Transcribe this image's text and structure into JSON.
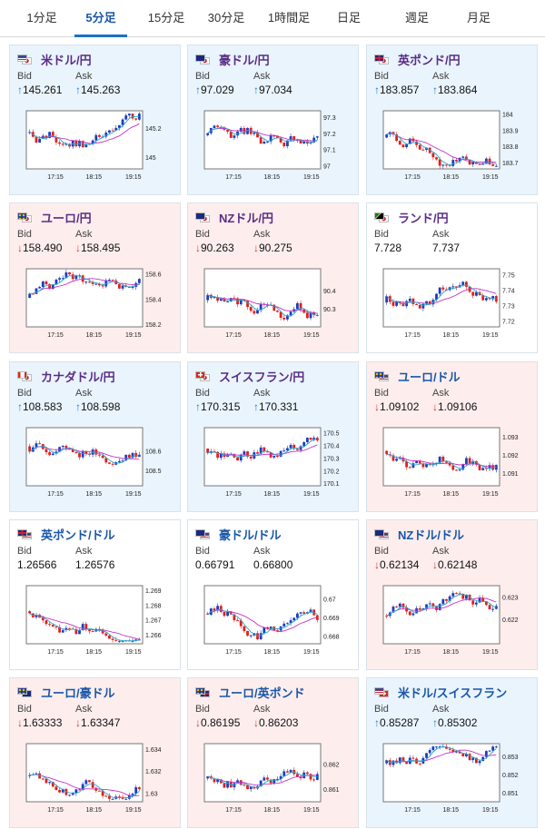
{
  "tabs": [
    {
      "label": "1分足",
      "active": false
    },
    {
      "label": "5分足",
      "active": true
    },
    {
      "label": "15分足",
      "active": false
    },
    {
      "label": "30分足",
      "active": false
    },
    {
      "label": "1時間足",
      "active": false
    },
    {
      "label": "日足",
      "active": false
    },
    {
      "label": "週足",
      "active": false
    },
    {
      "label": "月足",
      "active": false
    }
  ],
  "labels": {
    "bid": "Bid",
    "ask": "Ask"
  },
  "colors": {
    "up": "#1f7fc8",
    "down": "#d23a2e",
    "candle_up": "#1a3fbd",
    "candle_down": "#e0201a",
    "ma1": "#c433c4",
    "ma2": "#2aa7c9"
  },
  "x_ticks": [
    "17:15",
    "18:15",
    "19:15"
  ],
  "cards": [
    {
      "pair": "米ドル/円",
      "flags": [
        "us",
        "jp"
      ],
      "dir": "up",
      "bid": "145.261",
      "ask": "145.263",
      "yticks": [
        "145.2",
        "145"
      ],
      "ylim": [
        144.92,
        145.32
      ]
    },
    {
      "pair": "豪ドル/円",
      "flags": [
        "au",
        "jp"
      ],
      "dir": "up",
      "bid": "97.029",
      "ask": "97.034",
      "yticks": [
        "97.3",
        "97.2",
        "97.1",
        "97"
      ],
      "ylim": [
        96.98,
        97.34
      ]
    },
    {
      "pair": "英ポンド/円",
      "flags": [
        "uk",
        "jp"
      ],
      "dir": "up",
      "bid": "183.857",
      "ask": "183.864",
      "yticks": [
        "184",
        "183.9",
        "183.8",
        "183.7"
      ],
      "ylim": [
        183.66,
        184.02
      ]
    },
    {
      "pair": "ユーロ/円",
      "flags": [
        "eu",
        "jp"
      ],
      "dir": "down",
      "bid": "158.490",
      "ask": "158.495",
      "yticks": [
        "158.6",
        "158.4",
        "158.2"
      ],
      "ylim": [
        158.18,
        158.64
      ]
    },
    {
      "pair": "NZドル/円",
      "flags": [
        "nz",
        "jp"
      ],
      "dir": "down",
      "bid": "90.263",
      "ask": "90.275",
      "yticks": [
        "90.4",
        "90.3"
      ],
      "ylim": [
        90.2,
        90.52
      ]
    },
    {
      "pair": "ランド/円",
      "flags": [
        "za",
        "jp"
      ],
      "dir": "flat",
      "bid": "7.728",
      "ask": "7.737",
      "yticks": [
        "7.75",
        "7.74",
        "7.73",
        "7.72"
      ],
      "ylim": [
        7.716,
        7.754
      ]
    },
    {
      "pair": "カナダドル/円",
      "flags": [
        "ca",
        "jp"
      ],
      "dir": "up",
      "bid": "108.583",
      "ask": "108.598",
      "yticks": [
        "108.6",
        "108.5"
      ],
      "ylim": [
        108.42,
        108.72
      ]
    },
    {
      "pair": "スイスフラン/円",
      "flags": [
        "ch",
        "jp"
      ],
      "dir": "up",
      "bid": "170.315",
      "ask": "170.331",
      "yticks": [
        "170.5",
        "170.4",
        "170.3",
        "170.2",
        "170.1"
      ],
      "ylim": [
        170.08,
        170.54
      ]
    },
    {
      "pair": "ユーロ/ドル",
      "flags": [
        "eu",
        "us"
      ],
      "dir": "down",
      "blue": true,
      "bid": "1.09102",
      "ask": "1.09106",
      "yticks": [
        "1.093",
        "1.092",
        "1.091"
      ],
      "ylim": [
        1.0903,
        1.0935
      ]
    },
    {
      "pair": "英ポンド/ドル",
      "flags": [
        "uk",
        "us"
      ],
      "dir": "flat",
      "blue": true,
      "bid": "1.26566",
      "ask": "1.26576",
      "yticks": [
        "1.269",
        "1.268",
        "1.267",
        "1.266"
      ],
      "ylim": [
        1.2654,
        1.2693
      ]
    },
    {
      "pair": "豪ドル/ドル",
      "flags": [
        "au",
        "us"
      ],
      "dir": "flat",
      "blue": true,
      "bid": "0.66791",
      "ask": "0.66800",
      "yticks": [
        "0.67",
        "0.669",
        "0.668"
      ],
      "ylim": [
        0.6676,
        0.6707
      ]
    },
    {
      "pair": "NZドル/ドル",
      "flags": [
        "nz",
        "us"
      ],
      "dir": "down",
      "blue": true,
      "bid": "0.62134",
      "ask": "0.62148",
      "yticks": [
        "0.623",
        "0.622"
      ],
      "ylim": [
        0.6209,
        0.6235
      ]
    },
    {
      "pair": "ユーロ/豪ドル",
      "flags": [
        "eu",
        "au"
      ],
      "dir": "down",
      "blue": true,
      "bid": "1.63333",
      "ask": "1.63347",
      "yticks": [
        "1.634",
        "1.632",
        "1.63"
      ],
      "ylim": [
        1.6292,
        1.6345
      ]
    },
    {
      "pair": "ユーロ/英ポンド",
      "flags": [
        "eu",
        "uk"
      ],
      "dir": "down",
      "blue": true,
      "bid": "0.86195",
      "ask": "0.86203",
      "yticks": [
        "0.862",
        "0.861"
      ],
      "ylim": [
        0.8605,
        0.8628
      ]
    },
    {
      "pair": "米ドル/スイスフラン",
      "flags": [
        "us",
        "ch"
      ],
      "dir": "up",
      "blue": true,
      "bid": "0.85287",
      "ask": "0.85302",
      "yticks": [
        "0.853",
        "0.852",
        "0.851"
      ],
      "ylim": [
        0.8505,
        0.8537
      ]
    }
  ]
}
